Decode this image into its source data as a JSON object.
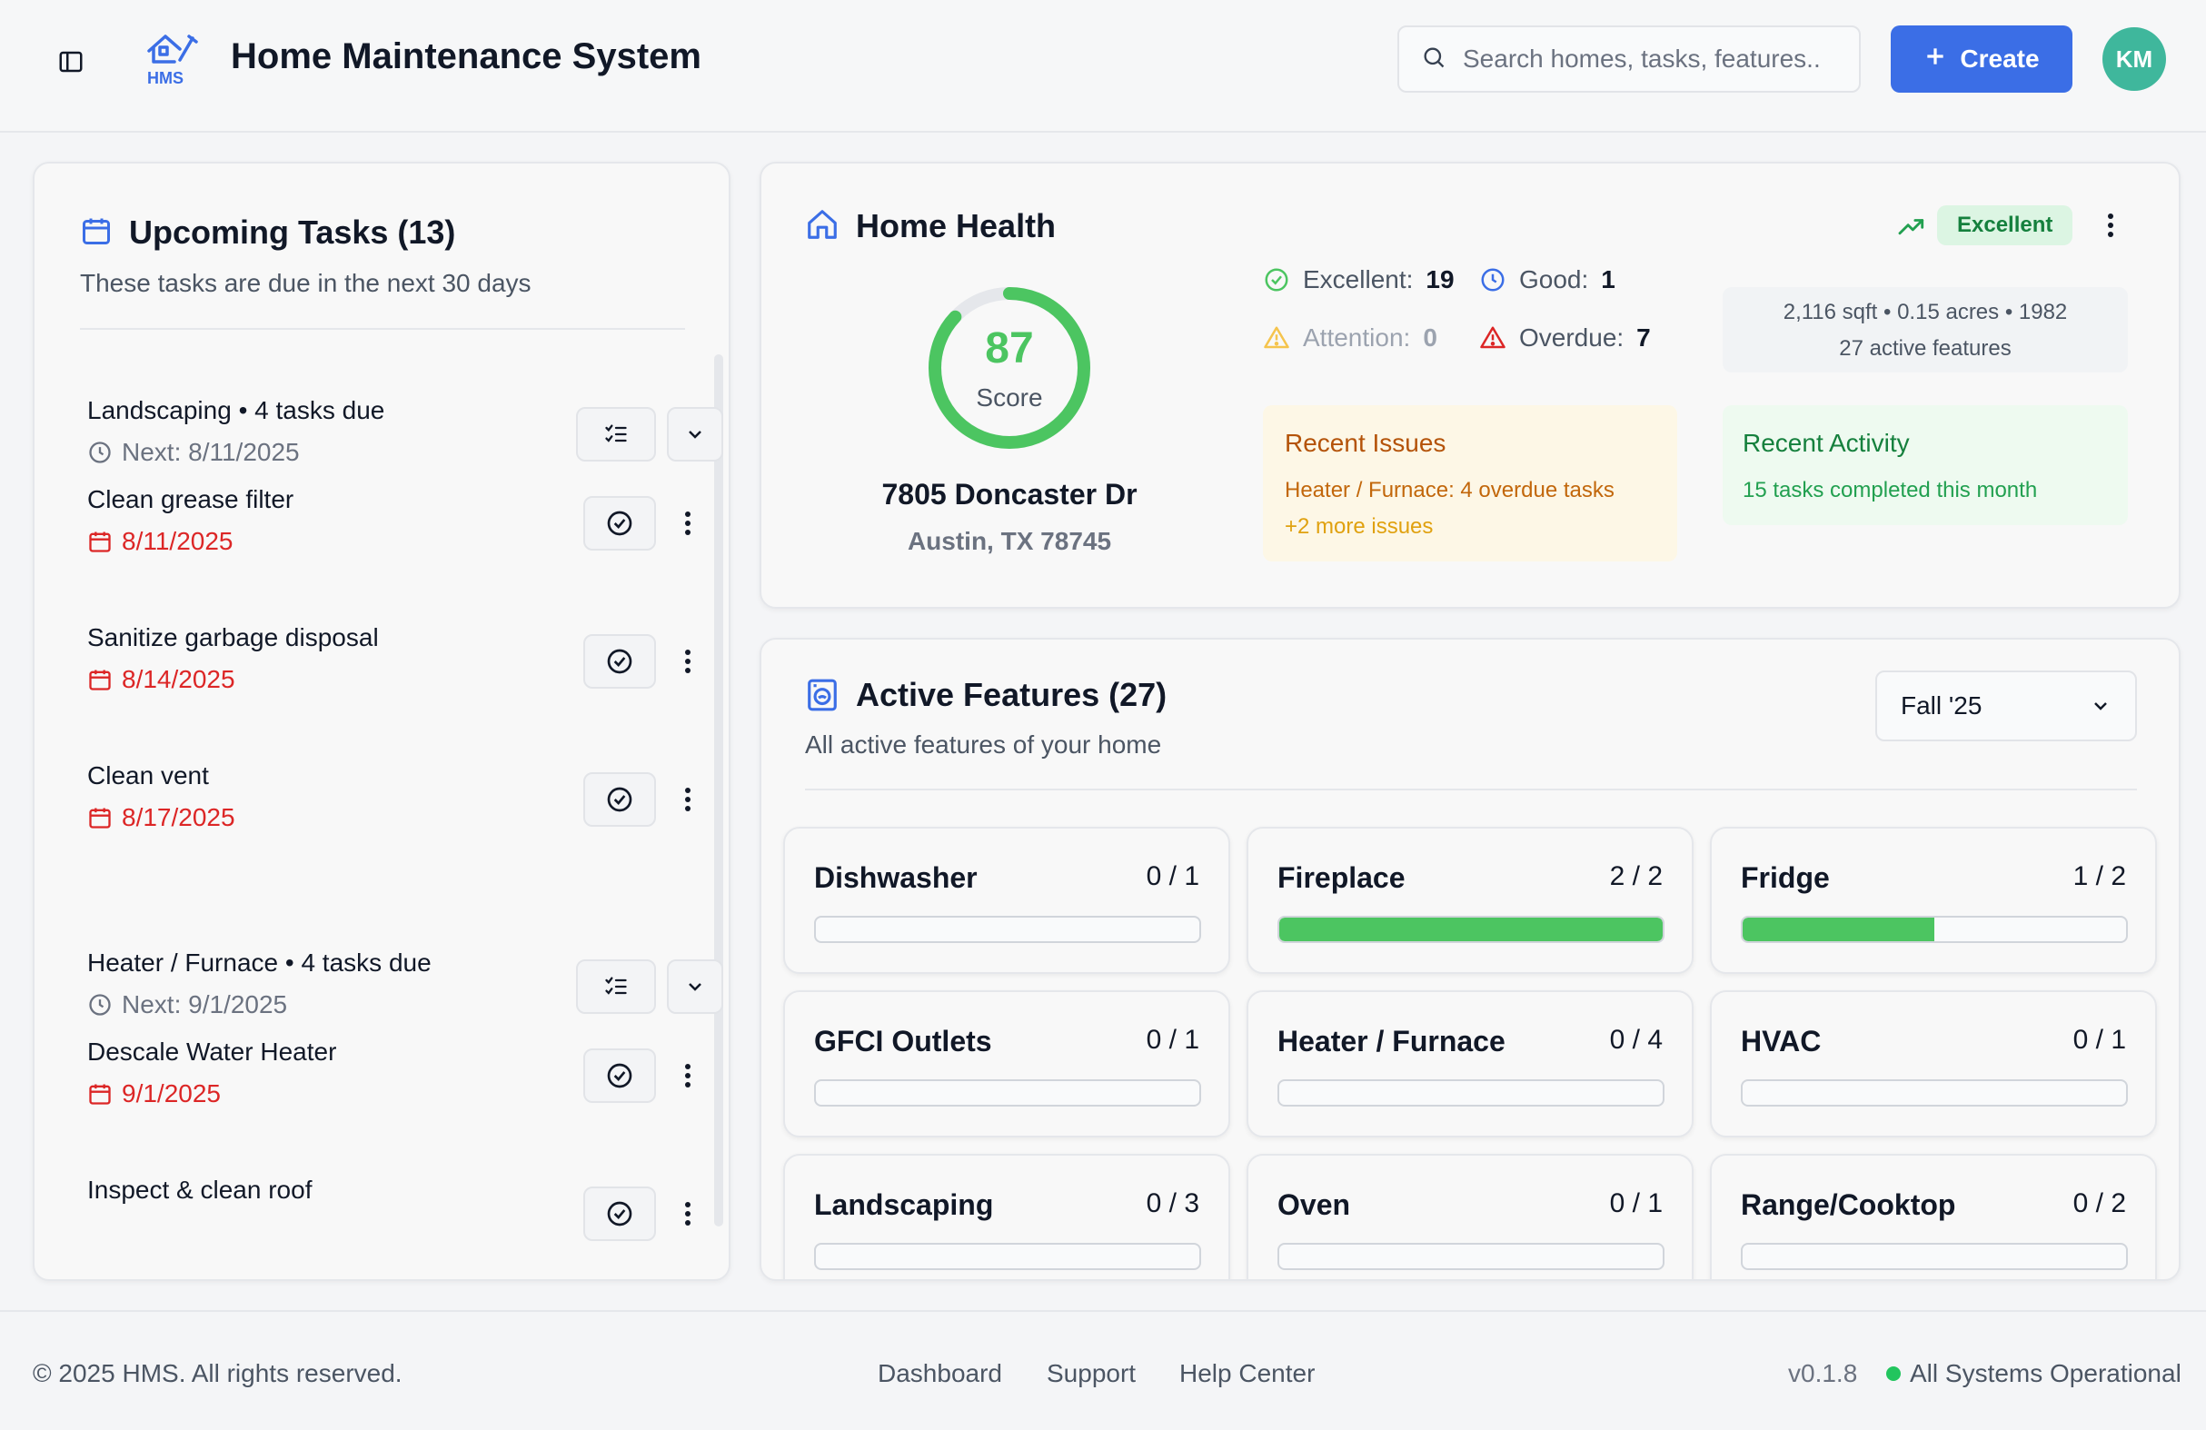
{
  "header": {
    "logo_text": "HMS",
    "title": "Home Maintenance System",
    "search_placeholder": "Search homes, tasks, features..",
    "create_label": "Create",
    "avatar_initials": "KM"
  },
  "tasks": {
    "title": "Upcoming Tasks (13)",
    "subtitle": "These tasks are due in the next 30 days",
    "items": [
      {
        "name": "Landscaping • 4 tasks due",
        "date": "Next: 8/11/2025",
        "kind": "group"
      },
      {
        "name": "Clean grease filter",
        "date": "8/11/2025",
        "kind": "task"
      },
      {
        "name": "Sanitize garbage disposal",
        "date": "8/14/2025",
        "kind": "task"
      },
      {
        "name": "Clean vent",
        "date": "8/17/2025",
        "kind": "task"
      },
      {
        "name": "Heater / Furnace • 4 tasks due",
        "date": "Next: 9/1/2025",
        "kind": "group"
      },
      {
        "name": "Descale Water Heater",
        "date": "9/1/2025",
        "kind": "task"
      },
      {
        "name": "Inspect & clean roof",
        "date": "",
        "kind": "task"
      }
    ]
  },
  "health": {
    "title": "Home Health",
    "rating": "Excellent",
    "score": 87,
    "score_label": "Score",
    "address": "7805 Doncaster Dr",
    "city": "Austin, TX 78745",
    "stats": {
      "excellent_label": "Excellent:",
      "excellent_value": "19",
      "good_label": "Good:",
      "good_value": "1",
      "attention_label": "Attention:",
      "attention_value": "0",
      "overdue_label": "Overdue:",
      "overdue_value": "7"
    },
    "facts": {
      "line1": "2,116 sqft  •  0.15 acres  •  1982",
      "line2": "27 active features"
    },
    "issues": {
      "title": "Recent Issues",
      "line1": "Heater / Furnace: 4 overdue tasks",
      "line2": "+2 more issues"
    },
    "activity": {
      "title": "Recent Activity",
      "line": "15 tasks completed this month"
    },
    "colors": {
      "good": "#4cc561",
      "warning": "#e0a10f",
      "danger": "#dc2626",
      "info": "#3b6ee6"
    }
  },
  "features": {
    "title": "Active Features (27)",
    "subtitle": "All active features of your home",
    "season": "Fall '25",
    "items": [
      {
        "name": "Dishwasher",
        "count": "0 / 1",
        "done": 0,
        "total": 1
      },
      {
        "name": "Fireplace",
        "count": "2 / 2",
        "done": 2,
        "total": 2
      },
      {
        "name": "Fridge",
        "count": "1 / 2",
        "done": 1,
        "total": 2
      },
      {
        "name": "GFCI Outlets",
        "count": "0 / 1",
        "done": 0,
        "total": 1
      },
      {
        "name": "Heater / Furnace",
        "count": "0 / 4",
        "done": 0,
        "total": 4
      },
      {
        "name": "HVAC",
        "count": "0 / 1",
        "done": 0,
        "total": 1
      },
      {
        "name": "Landscaping",
        "count": "0 / 3",
        "done": 0,
        "total": 3
      },
      {
        "name": "Oven",
        "count": "0 / 1",
        "done": 0,
        "total": 1
      },
      {
        "name": "Range/Cooktop",
        "count": "0 / 2",
        "done": 0,
        "total": 2
      }
    ]
  },
  "footer": {
    "copyright": "© 2025 HMS. All rights reserved.",
    "links": [
      "Dashboard",
      "Support",
      "Help Center"
    ],
    "version": "v0.1.8",
    "status": "All Systems Operational"
  }
}
